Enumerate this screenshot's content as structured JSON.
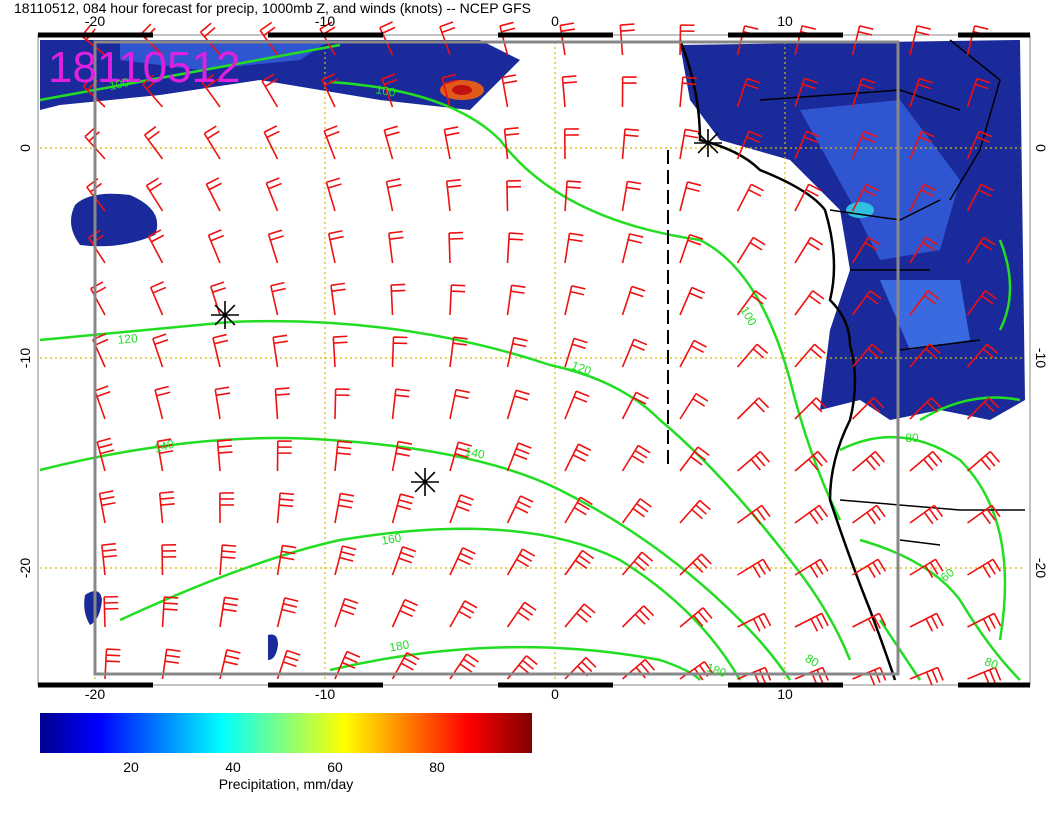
{
  "header": {
    "title": "18110512, 084 hour forecast for precip, 1000mb Z, and winds (knots) -- NCEP GFS"
  },
  "map": {
    "stamp": "18110512",
    "x_ticks": [
      -20,
      -10,
      0,
      10
    ],
    "y_ticks": [
      0,
      -10,
      -20
    ],
    "contour_labels": [
      100,
      100,
      120,
      120,
      140,
      140,
      160,
      180,
      180,
      100,
      80,
      80,
      60,
      80
    ]
  },
  "colorbar": {
    "ticks": [
      20,
      40,
      60,
      80
    ],
    "label": "Precipitation, mm/day"
  }
}
